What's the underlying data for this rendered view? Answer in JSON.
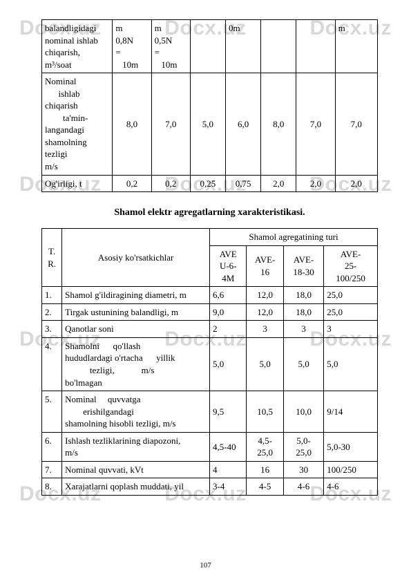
{
  "watermark": "Docx.uz",
  "page_number": "107",
  "table1": {
    "columns": 8,
    "rows": [
      {
        "label_lines": [
          "balandligidagi",
          "nominal ishlab",
          "chiqarish,",
          "m³/soat"
        ],
        "cells": [
          "m\n0,8N\n=\n   10m",
          "m\n0,5N\n=\n   10m",
          "",
          "0m",
          "",
          "",
          "m"
        ]
      },
      {
        "label_lines": [
          "Nominal",
          "      ishlab",
          "chiqarish",
          "        ta'min-",
          "langandagi",
          "shamolning",
          "tezligi",
          "m/s"
        ],
        "cells": [
          "8,0",
          "7,0",
          "5,0",
          "6,0",
          "8,0",
          "7,0",
          "7,0"
        ]
      },
      {
        "label_lines": [
          "Og'irligi, t"
        ],
        "cells": [
          "0,2",
          "0,2",
          "0,25",
          "0,75",
          "2,0",
          "2,0",
          "2,0"
        ]
      }
    ]
  },
  "title": "Shamol elektr agregatlarning xarakteristikasi.",
  "table2": {
    "header": {
      "col1": "T.\nR.",
      "col2": "Asosiy ko'rsatkichlar",
      "group": "Shamol agregatining turi",
      "subs": [
        "AVE\nU-6-\n4M",
        "AVE-\n16",
        "AVE-\n18-30",
        "AVE-\n25-\n100/250"
      ]
    },
    "rows": [
      {
        "n": "1.",
        "label": "Shamol  g'ildiragining diametri, m",
        "v": [
          "6,6",
          "12,0",
          "18,0",
          "25,0"
        ]
      },
      {
        "n": "2.",
        "label": "Tirgak ustunining balandligi, m",
        "v": [
          "9,0",
          "12,0",
          "18,0",
          "25,0"
        ]
      },
      {
        "n": "3.",
        "label": "Qanotlar soni",
        "v": [
          "2",
          "3",
          "3",
          "3"
        ]
      },
      {
        "n": "4.",
        "label": "Shamolni      qo'llash\nhududlardagi  o'rtacha      yillik\n           tezligi,            m/s\nbo'lmagan",
        "v": [
          "5,0",
          "5,0",
          "5,0",
          "5,0"
        ]
      },
      {
        "n": "5.",
        "label": "Nominal     quvvatga\n        erishilgandagi\nshamolning hisobli tezligi, m/s",
        "v": [
          "9,5",
          "10,5",
          "10,0",
          "9/14"
        ]
      },
      {
        "n": "6.",
        "label": "Ishlash tezliklarining diapozoni,\nm/s",
        "v": [
          "4,5-40",
          "4,5-\n25,0",
          "5,0-\n25,0",
          "5,0-30"
        ]
      },
      {
        "n": "7.",
        "label": "Nominal quvvati, kVt",
        "v": [
          "4",
          "16",
          "30",
          "100/250"
        ]
      },
      {
        "n": "8.",
        "label": "Xarajatlarni qoplash muddati, yil",
        "v": [
          "3-4",
          "4-5",
          "4-6",
          "4-6"
        ]
      }
    ]
  },
  "colors": {
    "text": "#000000",
    "background": "#ffffff",
    "watermark": "#d8d8d8",
    "border": "#000000"
  }
}
